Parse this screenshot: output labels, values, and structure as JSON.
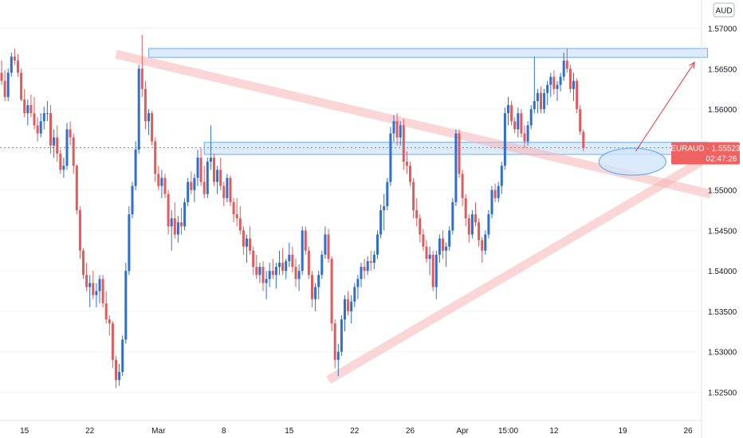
{
  "currency_button": "AUD",
  "symbol_label": "EURAUD · 1.55523",
  "countdown": "02:47:26",
  "colors": {
    "bull": "#2f6fcf",
    "bear": "#e35a5a",
    "zone_fill": "#cfe4fb",
    "zone_stroke": "#6aaef0",
    "trend_band": "#f5b5b5",
    "arrow": "#e03b3b",
    "price_tag": "#ef6262",
    "axis_text": "#131722"
  },
  "chart_data": {
    "type": "candlestick",
    "title": "",
    "symbol": "EURAUD",
    "last_price": 1.55523,
    "price_axis": {
      "range": [
        1.5215,
        1.5735
      ],
      "ticks": [
        "1.57000",
        "1.56500",
        "1.56000",
        "1.55500",
        "1.55000",
        "1.54500",
        "1.54000",
        "1.53500",
        "1.53000",
        "1.52500"
      ]
    },
    "time_axis": {
      "unit": "bar",
      "range": [
        0,
        208
      ],
      "ticks": [
        {
          "label": "15",
          "bar": 7
        },
        {
          "label": "22",
          "bar": 27
        },
        {
          "label": "Mar",
          "bar": 48
        },
        {
          "label": "8",
          "bar": 68
        },
        {
          "label": "15",
          "bar": 88
        },
        {
          "label": "22",
          "bar": 108
        },
        {
          "label": "26",
          "bar": 125
        },
        {
          "label": "Apr",
          "bar": 141
        },
        {
          "label": "15:00",
          "bar": 155
        },
        {
          "label": "12",
          "bar": 169
        },
        {
          "label": "19",
          "bar": 190
        },
        {
          "label": "26",
          "bar": 210
        }
      ]
    },
    "candles": [
      [
        1.5645,
        1.566,
        1.563,
        1.5635
      ],
      [
        1.5635,
        1.5648,
        1.561,
        1.5615
      ],
      [
        1.5615,
        1.565,
        1.561,
        1.5645
      ],
      [
        1.5645,
        1.567,
        1.564,
        1.5665
      ],
      [
        1.5665,
        1.5675,
        1.5655,
        1.566
      ],
      [
        1.566,
        1.5668,
        1.564,
        1.5645
      ],
      [
        1.5645,
        1.565,
        1.561,
        1.5612
      ],
      [
        1.5612,
        1.5625,
        1.559,
        1.5595
      ],
      [
        1.5595,
        1.5612,
        1.558,
        1.5605
      ],
      [
        1.5605,
        1.5618,
        1.559,
        1.5595
      ],
      [
        1.5595,
        1.5615,
        1.5575,
        1.558
      ],
      [
        1.558,
        1.559,
        1.556,
        1.557
      ],
      [
        1.557,
        1.5595,
        1.5565,
        1.5585
      ],
      [
        1.5585,
        1.5603,
        1.5575,
        1.5595
      ],
      [
        1.5595,
        1.561,
        1.5585,
        1.5595
      ],
      [
        1.5595,
        1.5605,
        1.5545,
        1.5555
      ],
      [
        1.5555,
        1.5575,
        1.554,
        1.5565
      ],
      [
        1.5565,
        1.558,
        1.5535,
        1.5545
      ],
      [
        1.5545,
        1.555,
        1.552,
        1.5525
      ],
      [
        1.5525,
        1.554,
        1.5515,
        1.553
      ],
      [
        1.553,
        1.5583,
        1.5525,
        1.5575
      ],
      [
        1.5575,
        1.5585,
        1.5555,
        1.5565
      ],
      [
        1.5565,
        1.557,
        1.552,
        1.553
      ],
      [
        1.553,
        1.5532,
        1.547,
        1.5475
      ],
      [
        1.5475,
        1.548,
        1.5415,
        1.5425
      ],
      [
        1.5425,
        1.5428,
        1.539,
        1.5395
      ],
      [
        1.5395,
        1.541,
        1.5375,
        1.538
      ],
      [
        1.538,
        1.5395,
        1.5355,
        1.5385
      ],
      [
        1.5385,
        1.54,
        1.5365,
        1.537
      ],
      [
        1.537,
        1.5385,
        1.5355,
        1.5375
      ],
      [
        1.5375,
        1.5395,
        1.536,
        1.539
      ],
      [
        1.539,
        1.5395,
        1.5355,
        1.536
      ],
      [
        1.536,
        1.5375,
        1.5335,
        1.534
      ],
      [
        1.534,
        1.5345,
        1.532,
        1.5335
      ],
      [
        1.5335,
        1.5338,
        1.528,
        1.529
      ],
      [
        1.529,
        1.5295,
        1.5255,
        1.5265
      ],
      [
        1.5265,
        1.5285,
        1.5258,
        1.5275
      ],
      [
        1.5275,
        1.532,
        1.527,
        1.5315
      ],
      [
        1.5315,
        1.541,
        1.531,
        1.54
      ],
      [
        1.54,
        1.548,
        1.5395,
        1.547
      ],
      [
        1.547,
        1.551,
        1.5465,
        1.5505
      ],
      [
        1.5505,
        1.556,
        1.55,
        1.555
      ],
      [
        1.555,
        1.5655,
        1.5545,
        1.565
      ],
      [
        1.565,
        1.5692,
        1.5615,
        1.5625
      ],
      [
        1.5625,
        1.5635,
        1.5575,
        1.5585
      ],
      [
        1.5585,
        1.56,
        1.5568,
        1.5595
      ],
      [
        1.5595,
        1.5598,
        1.5555,
        1.556
      ],
      [
        1.556,
        1.5565,
        1.551,
        1.552
      ],
      [
        1.552,
        1.553,
        1.55,
        1.5505
      ],
      [
        1.5505,
        1.5525,
        1.549,
        1.5515
      ],
      [
        1.5515,
        1.552,
        1.549,
        1.5495
      ],
      [
        1.5495,
        1.55,
        1.5445,
        1.5455
      ],
      [
        1.5455,
        1.5475,
        1.5425,
        1.5465
      ],
      [
        1.5465,
        1.5485,
        1.544,
        1.5445
      ],
      [
        1.5445,
        1.5468,
        1.5435,
        1.546
      ],
      [
        1.546,
        1.5478,
        1.5445,
        1.5455
      ],
      [
        1.5455,
        1.549,
        1.545,
        1.5485
      ],
      [
        1.5485,
        1.5515,
        1.548,
        1.551
      ],
      [
        1.551,
        1.5523,
        1.5495,
        1.55
      ],
      [
        1.55,
        1.552,
        1.5485,
        1.5515
      ],
      [
        1.5515,
        1.555,
        1.5505,
        1.554
      ],
      [
        1.554,
        1.5552,
        1.5505,
        1.551
      ],
      [
        1.551,
        1.553,
        1.549,
        1.5495
      ],
      [
        1.5495,
        1.554,
        1.549,
        1.5535
      ],
      [
        1.5535,
        1.558,
        1.5525,
        1.554
      ],
      [
        1.554,
        1.5545,
        1.5505,
        1.551
      ],
      [
        1.551,
        1.553,
        1.5495,
        1.5525
      ],
      [
        1.5525,
        1.554,
        1.55,
        1.5505
      ],
      [
        1.5505,
        1.551,
        1.548,
        1.549
      ],
      [
        1.549,
        1.552,
        1.5485,
        1.5515
      ],
      [
        1.5515,
        1.5518,
        1.548,
        1.5485
      ],
      [
        1.5485,
        1.549,
        1.546,
        1.547
      ],
      [
        1.547,
        1.549,
        1.5455,
        1.5465
      ],
      [
        1.5465,
        1.548,
        1.5445,
        1.545
      ],
      [
        1.545,
        1.5455,
        1.542,
        1.543
      ],
      [
        1.543,
        1.5445,
        1.541,
        1.544
      ],
      [
        1.544,
        1.5455,
        1.542,
        1.5425
      ],
      [
        1.5425,
        1.543,
        1.5395,
        1.5405
      ],
      [
        1.5405,
        1.542,
        1.539,
        1.5395
      ],
      [
        1.5395,
        1.541,
        1.5385,
        1.5405
      ],
      [
        1.5405,
        1.5412,
        1.5375,
        1.5385
      ],
      [
        1.5385,
        1.54,
        1.5365,
        1.539
      ],
      [
        1.539,
        1.541,
        1.538,
        1.54
      ],
      [
        1.54,
        1.5415,
        1.539,
        1.5395
      ],
      [
        1.5395,
        1.541,
        1.5378,
        1.5405
      ],
      [
        1.5405,
        1.5425,
        1.5395,
        1.541
      ],
      [
        1.541,
        1.5428,
        1.5395,
        1.54
      ],
      [
        1.54,
        1.5415,
        1.539,
        1.5412
      ],
      [
        1.5412,
        1.5435,
        1.5405,
        1.542
      ],
      [
        1.542,
        1.543,
        1.5398,
        1.5405
      ],
      [
        1.5405,
        1.5415,
        1.538,
        1.539
      ],
      [
        1.539,
        1.5408,
        1.5375,
        1.54
      ],
      [
        1.54,
        1.5455,
        1.5395,
        1.545
      ],
      [
        1.545,
        1.5455,
        1.542,
        1.5425
      ],
      [
        1.5425,
        1.543,
        1.539,
        1.5395
      ],
      [
        1.5395,
        1.54,
        1.5355,
        1.5365
      ],
      [
        1.5365,
        1.5385,
        1.535,
        1.538
      ],
      [
        1.538,
        1.54,
        1.5365,
        1.5395
      ],
      [
        1.5395,
        1.5425,
        1.539,
        1.542
      ],
      [
        1.542,
        1.5455,
        1.5415,
        1.5445
      ],
      [
        1.5445,
        1.5452,
        1.541,
        1.5415
      ],
      [
        1.5415,
        1.5418,
        1.5325,
        1.5335
      ],
      [
        1.5335,
        1.534,
        1.528,
        1.529
      ],
      [
        1.529,
        1.531,
        1.527,
        1.53
      ],
      [
        1.53,
        1.5345,
        1.5295,
        1.534
      ],
      [
        1.534,
        1.537,
        1.5325,
        1.5365
      ],
      [
        1.5365,
        1.5375,
        1.5345,
        1.535
      ],
      [
        1.535,
        1.537,
        1.5335,
        1.5362
      ],
      [
        1.5362,
        1.5385,
        1.5355,
        1.538
      ],
      [
        1.538,
        1.5395,
        1.5365,
        1.539
      ],
      [
        1.539,
        1.541,
        1.538,
        1.5405
      ],
      [
        1.5405,
        1.5415,
        1.539,
        1.54
      ],
      [
        1.54,
        1.5418,
        1.5395,
        1.5412
      ],
      [
        1.5412,
        1.5425,
        1.54,
        1.541
      ],
      [
        1.541,
        1.5425,
        1.5402,
        1.542
      ],
      [
        1.542,
        1.545,
        1.5415,
        1.5445
      ],
      [
        1.5445,
        1.5482,
        1.544,
        1.5475
      ],
      [
        1.5475,
        1.5495,
        1.545,
        1.548
      ],
      [
        1.548,
        1.5515,
        1.5475,
        1.551
      ],
      [
        1.551,
        1.5578,
        1.5505,
        1.557
      ],
      [
        1.557,
        1.5593,
        1.556,
        1.5585
      ],
      [
        1.5585,
        1.5595,
        1.5555,
        1.5565
      ],
      [
        1.5565,
        1.5585,
        1.5555,
        1.558
      ],
      [
        1.558,
        1.5588,
        1.5525,
        1.5535
      ],
      [
        1.5535,
        1.5548,
        1.552,
        1.553
      ],
      [
        1.553,
        1.5535,
        1.5505,
        1.551
      ],
      [
        1.551,
        1.5515,
        1.5465,
        1.5475
      ],
      [
        1.5475,
        1.549,
        1.5455,
        1.5465
      ],
      [
        1.5465,
        1.547,
        1.5435,
        1.5445
      ],
      [
        1.5445,
        1.5452,
        1.5425,
        1.543
      ],
      [
        1.543,
        1.5438,
        1.541,
        1.5415
      ],
      [
        1.5415,
        1.543,
        1.5395,
        1.542
      ],
      [
        1.542,
        1.5425,
        1.5375,
        1.538
      ],
      [
        1.538,
        1.5425,
        1.5365,
        1.542
      ],
      [
        1.542,
        1.5445,
        1.541,
        1.544
      ],
      [
        1.544,
        1.545,
        1.5415,
        1.5425
      ],
      [
        1.5425,
        1.5435,
        1.5405,
        1.543
      ],
      [
        1.543,
        1.5455,
        1.5425,
        1.545
      ],
      [
        1.545,
        1.549,
        1.5445,
        1.5485
      ],
      [
        1.5485,
        1.5575,
        1.548,
        1.557
      ],
      [
        1.557,
        1.5575,
        1.5515,
        1.552
      ],
      [
        1.552,
        1.5525,
        1.548,
        1.549
      ],
      [
        1.549,
        1.5495,
        1.5455,
        1.5465
      ],
      [
        1.5465,
        1.547,
        1.5435,
        1.5445
      ],
      [
        1.5445,
        1.5475,
        1.544,
        1.547
      ],
      [
        1.547,
        1.5485,
        1.5455,
        1.546
      ],
      [
        1.546,
        1.5465,
        1.543,
        1.5438
      ],
      [
        1.5438,
        1.5442,
        1.541,
        1.5425
      ],
      [
        1.5425,
        1.545,
        1.542,
        1.5445
      ],
      [
        1.5445,
        1.5475,
        1.544,
        1.547
      ],
      [
        1.547,
        1.5505,
        1.5465,
        1.55
      ],
      [
        1.55,
        1.5508,
        1.5485,
        1.549
      ],
      [
        1.549,
        1.551,
        1.5485,
        1.5505
      ],
      [
        1.5505,
        1.5535,
        1.5495,
        1.553
      ],
      [
        1.553,
        1.5602,
        1.5525,
        1.5595
      ],
      [
        1.5595,
        1.5615,
        1.558,
        1.5605
      ],
      [
        1.5605,
        1.561,
        1.558,
        1.5585
      ],
      [
        1.5585,
        1.559,
        1.557,
        1.5575
      ],
      [
        1.5575,
        1.5602,
        1.5565,
        1.5595
      ],
      [
        1.5595,
        1.56,
        1.5565,
        1.557
      ],
      [
        1.557,
        1.558,
        1.5552,
        1.556
      ],
      [
        1.556,
        1.5585,
        1.5555,
        1.558
      ],
      [
        1.558,
        1.5605,
        1.5575,
        1.56
      ],
      [
        1.56,
        1.5665,
        1.5595,
        1.561
      ],
      [
        1.561,
        1.5625,
        1.5595,
        1.562
      ],
      [
        1.562,
        1.5628,
        1.5595,
        1.56
      ],
      [
        1.56,
        1.5625,
        1.5595,
        1.562
      ],
      [
        1.562,
        1.5635,
        1.5605,
        1.563
      ],
      [
        1.563,
        1.5645,
        1.5615,
        1.564
      ],
      [
        1.564,
        1.5648,
        1.5618,
        1.5625
      ],
      [
        1.5625,
        1.5635,
        1.561,
        1.563
      ],
      [
        1.563,
        1.5645,
        1.5622,
        1.564
      ],
      [
        1.564,
        1.567,
        1.5635,
        1.566
      ],
      [
        1.566,
        1.5675,
        1.5645,
        1.565
      ],
      [
        1.565,
        1.5655,
        1.562,
        1.5625
      ],
      [
        1.5625,
        1.5645,
        1.561,
        1.5635
      ],
      [
        1.5635,
        1.5638,
        1.5595,
        1.56
      ],
      [
        1.56,
        1.5605,
        1.5568,
        1.5572
      ],
      [
        1.5572,
        1.5575,
        1.5548,
        1.55523
      ]
    ]
  },
  "drawings": {
    "resistance_zone": {
      "price_top": 1.5675,
      "price_bottom": 1.5664,
      "bar_start": 45,
      "bar_end": 216
    },
    "support_zone": {
      "price_top": 1.5559,
      "price_bottom": 1.5544,
      "bar_start": 62,
      "bar_end": 216
    },
    "descending_trendline": [
      {
        "bar": 35,
        "price": 1.5668
      },
      {
        "bar": 217,
        "price": 1.5495
      }
    ],
    "ascending_trendline": [
      {
        "bar": 100,
        "price": 1.5265
      },
      {
        "bar": 214,
        "price": 1.5535
      }
    ],
    "ellipse_marker": {
      "bar": 193,
      "price": 1.5535
    },
    "projection_arrow": [
      {
        "bar": 194,
        "price": 1.5548
      },
      {
        "bar": 212,
        "price": 1.5658
      }
    ]
  }
}
